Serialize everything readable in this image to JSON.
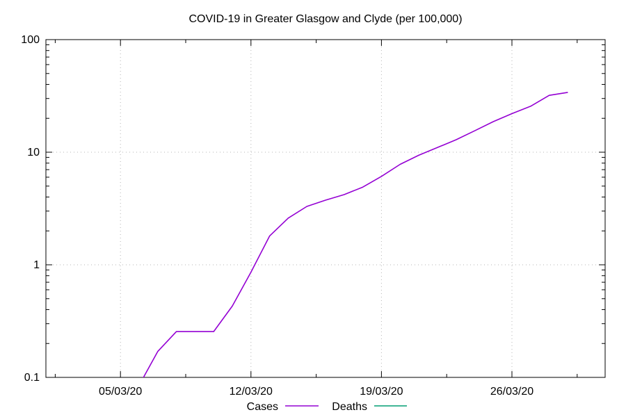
{
  "chart_data": {
    "type": "line",
    "title": "COVID-19 in Greater Glasgow and Clyde (per 100,000)",
    "xlabel": "",
    "ylabel": "",
    "y_scale": "log",
    "ylim": [
      0.1,
      100
    ],
    "xlim": [
      "2020-03-01",
      "2020-03-31"
    ],
    "x_ticks": [
      "05/03/20",
      "12/03/20",
      "19/03/20",
      "26/03/20"
    ],
    "y_ticks": [
      "0.1",
      "1",
      "10",
      "100"
    ],
    "grid": true,
    "legend_position": "bottom",
    "series": [
      {
        "name": "Cases",
        "color": "#9400d3",
        "x": [
          "2020-03-05",
          "2020-03-06",
          "2020-03-07",
          "2020-03-08",
          "2020-03-09",
          "2020-03-10",
          "2020-03-11",
          "2020-03-12",
          "2020-03-13",
          "2020-03-14",
          "2020-03-15",
          "2020-03-16",
          "2020-03-17",
          "2020-03-18",
          "2020-03-19",
          "2020-03-20",
          "2020-03-21",
          "2020-03-22",
          "2020-03-23",
          "2020-03-24",
          "2020-03-25",
          "2020-03-26",
          "2020-03-27",
          "2020-03-28",
          "2020-03-29"
        ],
        "values": [
          0.09,
          0.085,
          0.17,
          0.255,
          0.255,
          0.255,
          0.43,
          0.86,
          1.8,
          2.6,
          3.3,
          3.75,
          4.2,
          4.9,
          6.1,
          7.8,
          9.4,
          11.0,
          12.9,
          15.5,
          18.7,
          22.0,
          25.6,
          32.0,
          34.0
        ]
      },
      {
        "name": "Deaths",
        "color": "#009e73",
        "x": [],
        "values": []
      }
    ]
  }
}
